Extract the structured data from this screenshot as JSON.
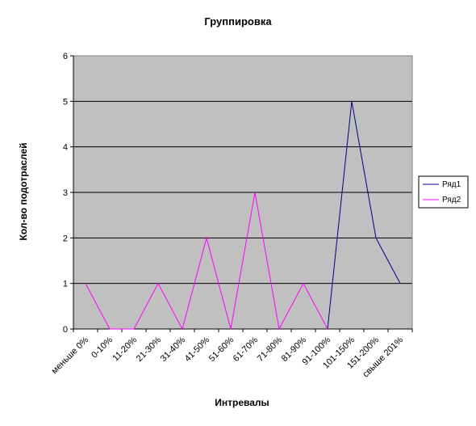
{
  "chart_data": {
    "type": "line",
    "title": "Группировка",
    "xlabel": "Интревалы",
    "ylabel": "Кол-во подотраслей",
    "categories": [
      "меньше 0%",
      "0-10%",
      "11-20%",
      "21-30%",
      "31-40%",
      "41-50%",
      "51-60%",
      "61-70%",
      "71-80%",
      "81-90%",
      "91-100%",
      "101-150%",
      "151-200%",
      "свыше 201%"
    ],
    "ylim": [
      0,
      6
    ],
    "yticks": [
      0,
      1,
      2,
      3,
      4,
      5,
      6
    ],
    "grid": true,
    "legend_position": "right",
    "plot_background": "#c0c0c0",
    "series": [
      {
        "name": "Ряд1",
        "color": "#000080",
        "values": [
          null,
          null,
          null,
          null,
          null,
          null,
          null,
          null,
          null,
          null,
          0,
          5,
          2,
          1
        ]
      },
      {
        "name": "Ряд2",
        "color": "#ff00ff",
        "values": [
          1,
          0,
          0,
          1,
          0,
          2,
          0,
          3,
          0,
          1,
          0,
          null,
          null,
          null
        ]
      }
    ]
  }
}
